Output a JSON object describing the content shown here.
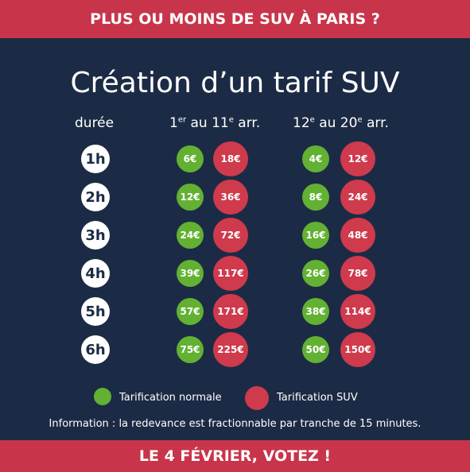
{
  "header": {
    "banner": "PLUS OU MOINS DE SUV À PARIS ?"
  },
  "title": "Création d’un tarif SUV",
  "columns": {
    "duration": "durée",
    "zone1": {
      "first": "1",
      "first_sup": "er",
      "mid": " au 11",
      "mid_sup": "e",
      "end": " arr."
    },
    "zone2": {
      "first": "12",
      "first_sup": "e",
      "mid": " au 20",
      "mid_sup": "e",
      "end": " arr."
    }
  },
  "rows": [
    {
      "duration": "1h",
      "z1_normal": "6€",
      "z1_suv": "18€",
      "z2_normal": "4€",
      "z2_suv": "12€"
    },
    {
      "duration": "2h",
      "z1_normal": "12€",
      "z1_suv": "36€",
      "z2_normal": "8€",
      "z2_suv": "24€"
    },
    {
      "duration": "3h",
      "z1_normal": "24€",
      "z1_suv": "72€",
      "z2_normal": "16€",
      "z2_suv": "48€"
    },
    {
      "duration": "4h",
      "z1_normal": "39€",
      "z1_suv": "117€",
      "z2_normal": "26€",
      "z2_suv": "78€"
    },
    {
      "duration": "5h",
      "z1_normal": "57€",
      "z1_suv": "171€",
      "z2_normal": "38€",
      "z2_suv": "114€"
    },
    {
      "duration": "6h",
      "z1_normal": "75€",
      "z1_suv": "225€",
      "z2_normal": "50€",
      "z2_suv": "150€"
    }
  ],
  "legend": {
    "normal": "Tarification normale",
    "suv": "Tarification SUV"
  },
  "info": "Information : la redevance est fractionnable par tranche de 15 minutes.",
  "footer": {
    "banner": "LE 4 FÉVRIER, VOTEZ !"
  },
  "colors": {
    "background": "#1c2b45",
    "banner": "#c8354a",
    "normal": "#62b133",
    "suv": "#cf3a4d"
  }
}
